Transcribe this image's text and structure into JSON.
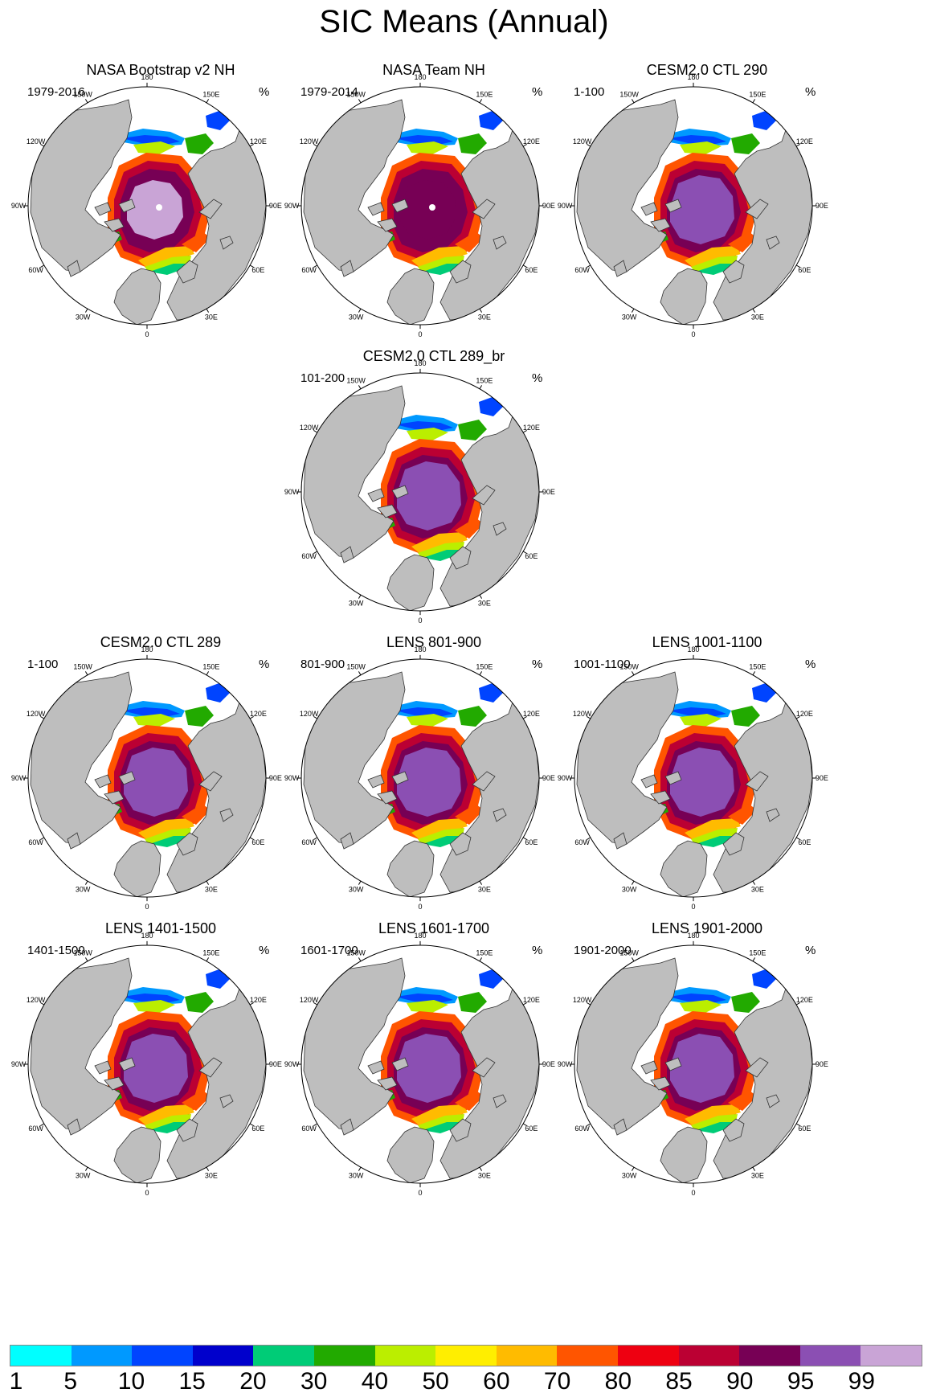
{
  "title": "SIC Means (Annual)",
  "unit_label": "%",
  "lon_labels": [
    "180",
    "150E",
    "120E",
    "90E",
    "60E",
    "30E",
    "0",
    "30W",
    "60W",
    "90W",
    "120W",
    "150W"
  ],
  "panels": [
    {
      "title": "NASA Bootstrap v2 NH",
      "period": "1979-2016",
      "variant": "obs-bootstrap"
    },
    {
      "title": "NASA Team NH",
      "period": "1979-2014",
      "variant": "obs-team"
    },
    {
      "title": "CESM2.0 CTL 290",
      "period": "1-100",
      "variant": "model"
    },
    {
      "title": "CESM2.0 CTL 289_br",
      "period": "101-200",
      "variant": "model"
    },
    {
      "title": "CESM2.0 CTL 289",
      "period": "1-100",
      "variant": "model"
    },
    {
      "title": "LENS 801-900",
      "period": "801-900",
      "variant": "model"
    },
    {
      "title": "LENS 1001-1100",
      "period": "1001-1100",
      "variant": "model"
    },
    {
      "title": "LENS 1401-1500",
      "period": "1401-1500",
      "variant": "model"
    },
    {
      "title": "LENS 1601-1700",
      "period": "1601-1700",
      "variant": "model"
    },
    {
      "title": "LENS 1901-2000",
      "period": "1901-2000",
      "variant": "model"
    }
  ],
  "colorbar": {
    "labels": [
      "1",
      "5",
      "10",
      "15",
      "20",
      "30",
      "40",
      "50",
      "60",
      "70",
      "80",
      "85",
      "90",
      "95",
      "99"
    ],
    "colors": [
      "#00ffff",
      "#0099ff",
      "#0044ff",
      "#0000cc",
      "#00cc77",
      "#22aa00",
      "#bbee00",
      "#ffee00",
      "#ffbb00",
      "#ff5500",
      "#ee0011",
      "#bb0033",
      "#770055",
      "#8b4fb3",
      "#c9a4d6"
    ]
  },
  "colors": {
    "land": "#bebebe",
    "ocean": "#ffffff",
    "coastline": "#333333"
  }
}
